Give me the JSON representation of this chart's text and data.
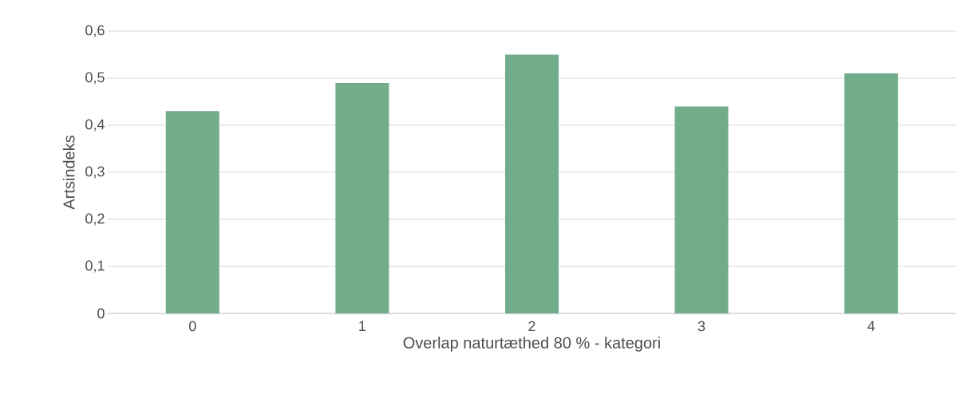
{
  "chart_data": {
    "type": "bar",
    "xlabel": "Overlap naturtæthed 80 % - kategori",
    "ylabel": "Artsindeks",
    "categories": [
      "0",
      "1",
      "2",
      "3",
      "4"
    ],
    "values": [
      0.43,
      0.49,
      0.55,
      0.44,
      0.51
    ],
    "color": "#71ad8a",
    "ylim": [
      0,
      0.6
    ],
    "yticks": [
      0,
      {
        "value": 0.1,
        "label": "0,1"
      },
      {
        "value": 0.2,
        "label": "0,2"
      },
      {
        "value": 0.3,
        "label": "0,3"
      },
      {
        "value": 0.4,
        "label": "0,4"
      },
      {
        "value": 0.5,
        "label": "0,5"
      },
      {
        "value": 0.6,
        "label": "0,6"
      }
    ],
    "grid": "y"
  }
}
